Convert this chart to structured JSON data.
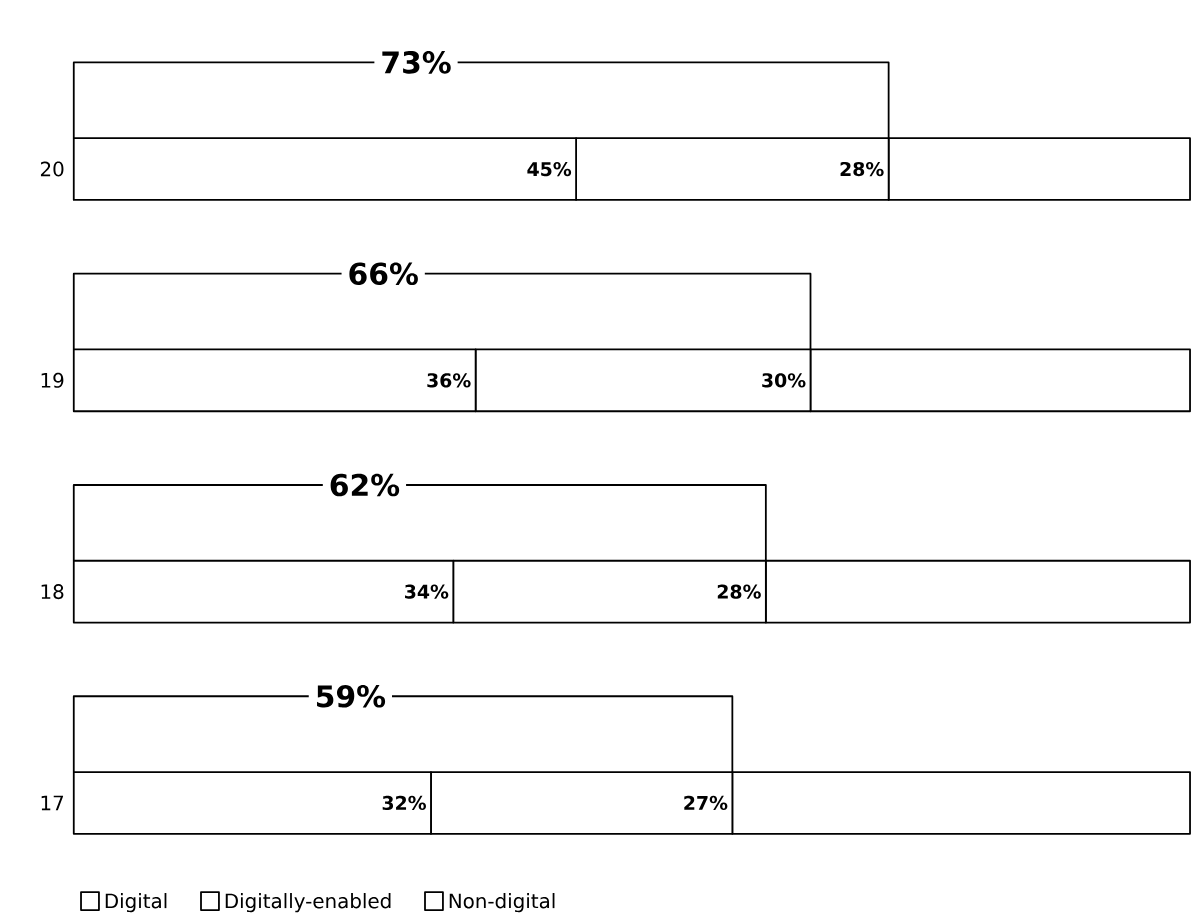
{
  "chart_data": {
    "type": "bar",
    "orientation": "horizontal",
    "stacked": true,
    "categories": [
      "20",
      "19",
      "18",
      "17"
    ],
    "series": [
      {
        "name": "Digital",
        "color": "#ffffff",
        "values": [
          45,
          36,
          34,
          32
        ],
        "value_labels": [
          "45%",
          "36%",
          "34%",
          "32%"
        ]
      },
      {
        "name": "Digitally-enabled",
        "color": "#ffffff",
        "values": [
          28,
          30,
          28,
          27
        ],
        "value_labels": [
          "28%",
          "30%",
          "28%",
          "27%"
        ]
      },
      {
        "name": "Non-digital",
        "color": "#ffffff",
        "values": [
          27,
          34,
          38,
          41
        ]
      }
    ],
    "annotations": [
      "73%",
      "66%",
      "62%",
      "59%"
    ],
    "tick_labels": "y",
    "legend": "bottom left"
  }
}
